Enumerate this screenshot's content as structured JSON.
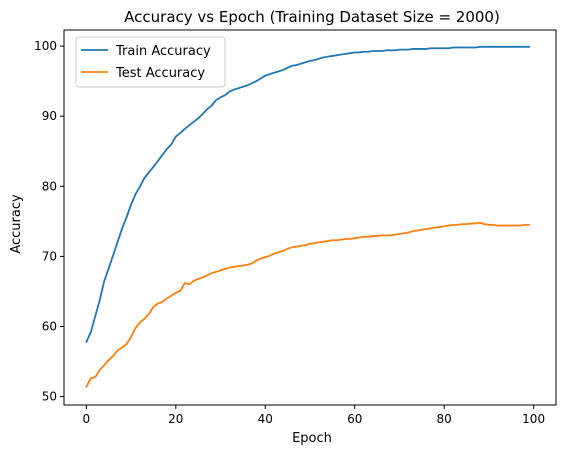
{
  "chart_data": {
    "type": "line",
    "title": "Accuracy vs Epoch (Training Dataset Size = 2000)",
    "xlabel": "Epoch",
    "ylabel": "Accuracy",
    "xlim": [
      -5,
      105
    ],
    "ylim": [
      48.8,
      102.3
    ],
    "xticks": [
      0,
      20,
      40,
      60,
      80,
      100
    ],
    "yticks": [
      50,
      60,
      70,
      80,
      90,
      100
    ],
    "grid": false,
    "legend_position": "top-left",
    "x": [
      0,
      1,
      2,
      3,
      4,
      5,
      6,
      7,
      8,
      9,
      10,
      11,
      12,
      13,
      14,
      15,
      16,
      17,
      18,
      19,
      20,
      21,
      22,
      23,
      24,
      25,
      26,
      27,
      28,
      29,
      30,
      31,
      32,
      33,
      34,
      35,
      36,
      37,
      38,
      39,
      40,
      41,
      42,
      43,
      44,
      45,
      46,
      47,
      48,
      49,
      50,
      51,
      52,
      53,
      54,
      55,
      56,
      57,
      58,
      59,
      60,
      61,
      62,
      63,
      64,
      65,
      66,
      67,
      68,
      69,
      70,
      71,
      72,
      73,
      74,
      75,
      76,
      77,
      78,
      79,
      80,
      81,
      82,
      83,
      84,
      85,
      86,
      87,
      88,
      89,
      90,
      91,
      92,
      93,
      94,
      95,
      96,
      97,
      98,
      99
    ],
    "series": [
      {
        "name": "Train Accuracy",
        "color": "#1f77b4",
        "values": [
          57.8,
          59.2,
          61.5,
          63.8,
          66.5,
          68.3,
          70.2,
          72.1,
          74.0,
          75.6,
          77.4,
          78.9,
          80.0,
          81.2,
          82.0,
          82.8,
          83.6,
          84.5,
          85.3,
          86.0,
          87.1,
          87.6,
          88.2,
          88.7,
          89.2,
          89.7,
          90.3,
          91.0,
          91.5,
          92.3,
          92.7,
          93.0,
          93.5,
          93.8,
          94.0,
          94.2,
          94.4,
          94.7,
          95.0,
          95.4,
          95.8,
          96.0,
          96.2,
          96.4,
          96.6,
          96.9,
          97.2,
          97.3,
          97.5,
          97.7,
          97.9,
          98.0,
          98.2,
          98.4,
          98.5,
          98.6,
          98.7,
          98.8,
          98.9,
          99.0,
          99.1,
          99.1,
          99.2,
          99.2,
          99.3,
          99.3,
          99.3,
          99.4,
          99.4,
          99.4,
          99.5,
          99.5,
          99.5,
          99.6,
          99.6,
          99.6,
          99.6,
          99.7,
          99.7,
          99.7,
          99.7,
          99.7,
          99.8,
          99.8,
          99.8,
          99.8,
          99.8,
          99.8,
          99.9,
          99.9,
          99.9,
          99.9,
          99.9,
          99.9,
          99.9,
          99.9,
          99.9,
          99.9,
          99.9,
          99.9
        ]
      },
      {
        "name": "Test Accuracy",
        "color": "#ff7f0e",
        "values": [
          51.4,
          52.6,
          52.8,
          53.8,
          54.5,
          55.2,
          55.8,
          56.6,
          57.0,
          57.5,
          58.5,
          59.8,
          60.6,
          61.1,
          61.8,
          62.8,
          63.3,
          63.5,
          64.0,
          64.4,
          64.8,
          65.1,
          66.2,
          66.0,
          66.5,
          66.8,
          67.0,
          67.3,
          67.6,
          67.8,
          68.0,
          68.2,
          68.4,
          68.5,
          68.6,
          68.7,
          68.8,
          69.0,
          69.4,
          69.7,
          69.9,
          70.1,
          70.4,
          70.6,
          70.8,
          71.1,
          71.3,
          71.4,
          71.5,
          71.6,
          71.8,
          71.9,
          72.0,
          72.1,
          72.2,
          72.3,
          72.3,
          72.4,
          72.5,
          72.5,
          72.6,
          72.7,
          72.8,
          72.8,
          72.9,
          72.9,
          73.0,
          73.0,
          73.0,
          73.1,
          73.2,
          73.3,
          73.4,
          73.6,
          73.7,
          73.8,
          73.9,
          74.0,
          74.1,
          74.2,
          74.3,
          74.4,
          74.5,
          74.5,
          74.6,
          74.6,
          74.7,
          74.7,
          74.8,
          74.6,
          74.5,
          74.5,
          74.4,
          74.4,
          74.4,
          74.4,
          74.4,
          74.4,
          74.5,
          74.5
        ]
      }
    ]
  }
}
